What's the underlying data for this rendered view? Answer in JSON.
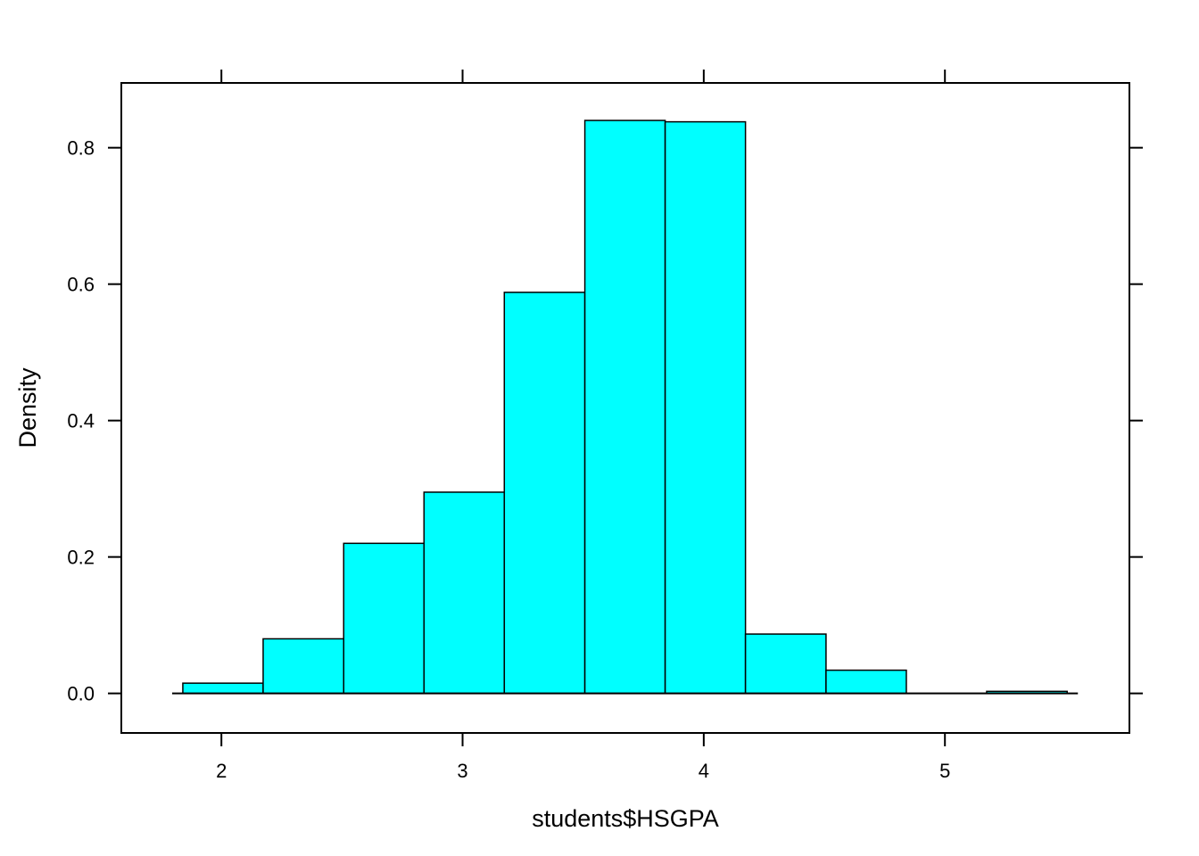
{
  "chart_data": {
    "type": "bar",
    "title": "",
    "xlabel": "students$HSGPA",
    "ylabel": "Density",
    "bar_color": "#00ffff",
    "bar_border_color": "#000000",
    "bin_edges": [
      1.84,
      2.173,
      2.507,
      2.84,
      3.173,
      3.507,
      3.84,
      4.173,
      4.507,
      4.84,
      5.173,
      5.507
    ],
    "values": [
      0.015,
      0.08,
      0.22,
      0.295,
      0.588,
      0.84,
      0.838,
      0.087,
      0.034,
      0.0,
      0.003
    ],
    "xlim": [
      1.585,
      5.765
    ],
    "ylim": [
      -0.058,
      0.895
    ],
    "x_ticks": [
      2,
      3,
      4,
      5
    ],
    "x_tick_labels": [
      "2",
      "3",
      "4",
      "5"
    ],
    "y_ticks": [
      0.0,
      0.2,
      0.4,
      0.6,
      0.8
    ],
    "y_tick_labels": [
      "0.0",
      "0.2",
      "0.4",
      "0.6",
      "0.8"
    ],
    "grid": false,
    "legend": "none"
  }
}
